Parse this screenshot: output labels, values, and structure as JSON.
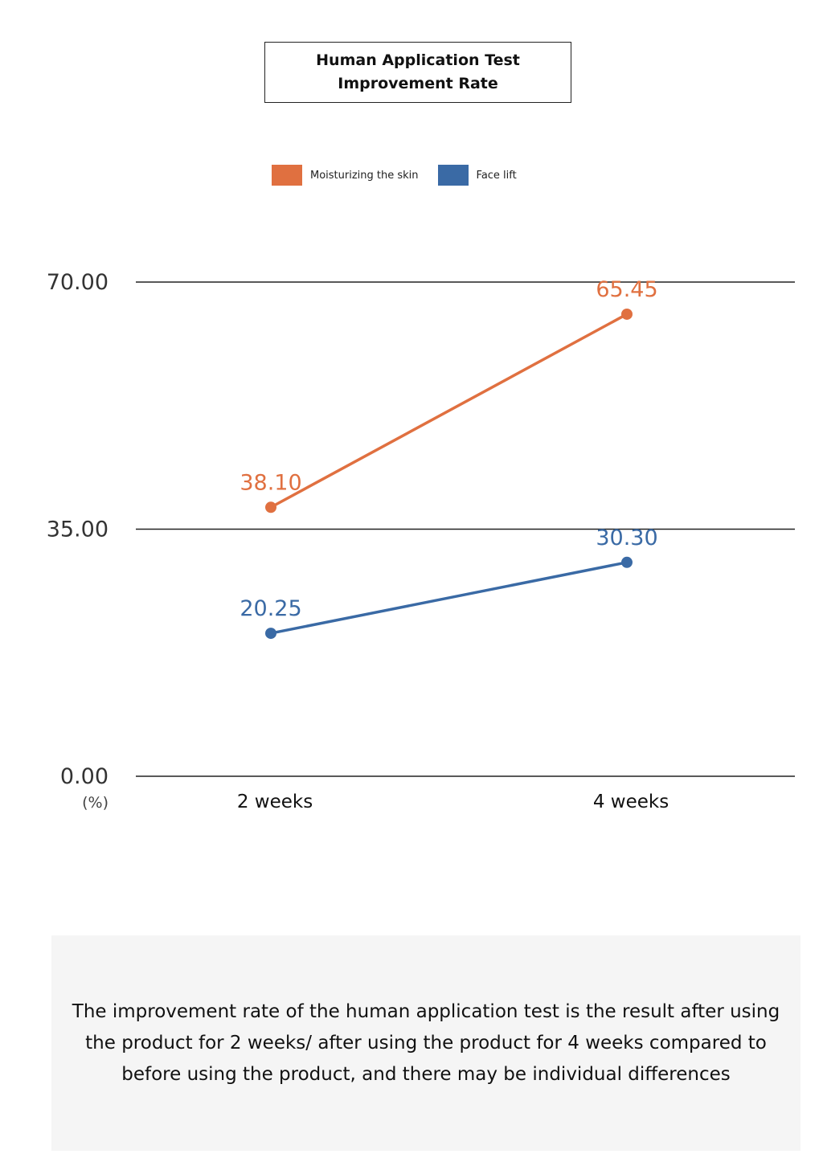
{
  "chart_data": {
    "type": "line",
    "title": "Human Application Test Improvement Rate",
    "title_lines": [
      "Human Application Test",
      "Improvement Rate"
    ],
    "categories": [
      "2 weeks",
      "4 weeks"
    ],
    "series": [
      {
        "name": "Moisturizing the skin",
        "values": [
          38.1,
          65.45
        ],
        "labels": [
          "38.10",
          "65.45"
        ],
        "color": "#e07040"
      },
      {
        "name": "Face lift",
        "values": [
          20.25,
          30.3
        ],
        "labels": [
          "20.25",
          "30.30"
        ],
        "color": "#3a6aa5"
      }
    ],
    "yticks": [
      "70.00",
      "35.00",
      "0.00"
    ],
    "ytick_values": [
      70,
      35,
      0
    ],
    "yunit": "(%)",
    "ylim": [
      0,
      70
    ],
    "grid": true,
    "legend": "top-center"
  },
  "note": "The improvement rate of the human application test is the result after using the product for 2 weeks/ after using the product for 4 weeks compared to before using the product, and there may be individual differences"
}
